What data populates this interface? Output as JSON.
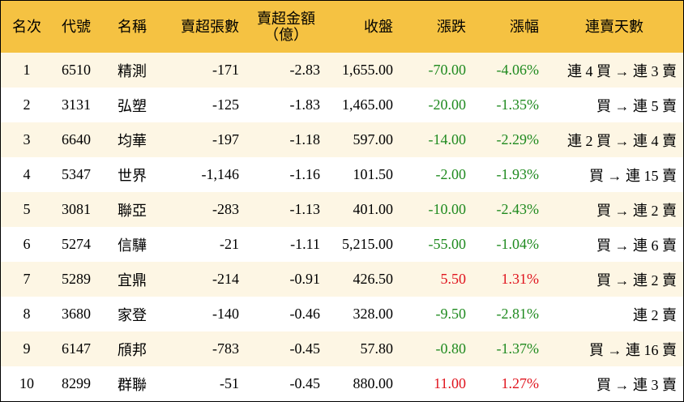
{
  "table": {
    "header": [
      "名次",
      "代號",
      "名稱",
      "賣超張數",
      "賣超金額\n（億）",
      "收盤",
      "漲跌",
      "漲幅",
      "連賣天數"
    ],
    "rows": [
      [
        "1",
        "6510",
        "精測",
        "-171",
        "-2.83",
        "1,655.00",
        "-70.00",
        "-4.06%",
        "連 4 買 → 連 3 賣"
      ],
      [
        "2",
        "3131",
        "弘塑",
        "-125",
        "-1.83",
        "1,465.00",
        "-20.00",
        "-1.35%",
        "買 → 連 5 賣"
      ],
      [
        "3",
        "6640",
        "均華",
        "-197",
        "-1.18",
        "597.00",
        "-14.00",
        "-2.29%",
        "連 2 買 → 連 4 賣"
      ],
      [
        "4",
        "5347",
        "世界",
        "-1,146",
        "-1.16",
        "101.50",
        "-2.00",
        "-1.93%",
        "買 → 連 15 賣"
      ],
      [
        "5",
        "3081",
        "聯亞",
        "-283",
        "-1.13",
        "401.00",
        "-10.00",
        "-2.43%",
        "買 → 連 2 賣"
      ],
      [
        "6",
        "5274",
        "信驊",
        "-21",
        "-1.11",
        "5,215.00",
        "-55.00",
        "-1.04%",
        "買 → 連 6 賣"
      ],
      [
        "7",
        "5289",
        "宜鼎",
        "-214",
        "-0.91",
        "426.50",
        "5.50",
        "1.31%",
        "買 → 連 2 賣"
      ],
      [
        "8",
        "3680",
        "家登",
        "-140",
        "-0.46",
        "328.00",
        "-9.50",
        "-2.81%",
        "連 2 賣"
      ],
      [
        "9",
        "6147",
        "頎邦",
        "-783",
        "-0.45",
        "57.80",
        "-0.80",
        "-1.37%",
        "買 → 連 16 賣"
      ],
      [
        "10",
        "8299",
        "群聯",
        "-51",
        "-0.45",
        "880.00",
        "11.00",
        "1.27%",
        "買 → 連 3 賣"
      ]
    ]
  }
}
